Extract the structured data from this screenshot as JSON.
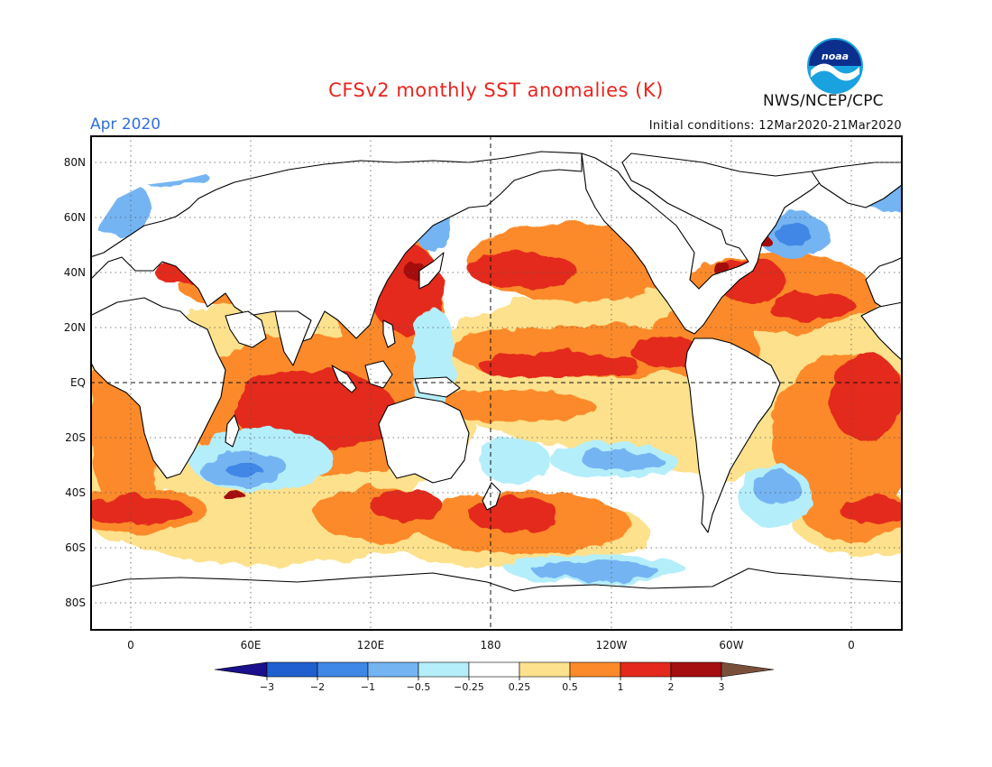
{
  "title": "CFSv2 monthly SST anomalies (K)",
  "month_label": "Apr 2020",
  "initial_conditions": "Initial conditions: 12Mar2020-21Mar2020",
  "agency": "NWS/NCEP/CPC",
  "logo_text": "noaa",
  "lat_labels": [
    "80N",
    "60N",
    "40N",
    "20N",
    "EQ",
    "20S",
    "40S",
    "60S",
    "80S"
  ],
  "lon_labels": [
    "0",
    "60E",
    "120E",
    "180",
    "120W",
    "60W",
    "0"
  ],
  "colorbar": {
    "labels": [
      "-3",
      "-2",
      "-1",
      "-0.5",
      "-0.25",
      "0.25",
      "0.5",
      "1",
      "2",
      "3"
    ],
    "colors": [
      "#1a0f8c",
      "#1f5fce",
      "#3f87e6",
      "#74b4f2",
      "#b4eefa",
      "#ffffff",
      "#fde18c",
      "#fc8a2a",
      "#e3291b",
      "#a50f10",
      "#7a4f3a"
    ]
  },
  "colors": {
    "title": "#e8251f",
    "month": "#2f6fe0",
    "land": "#ffffff",
    "coast": "#000000"
  }
}
